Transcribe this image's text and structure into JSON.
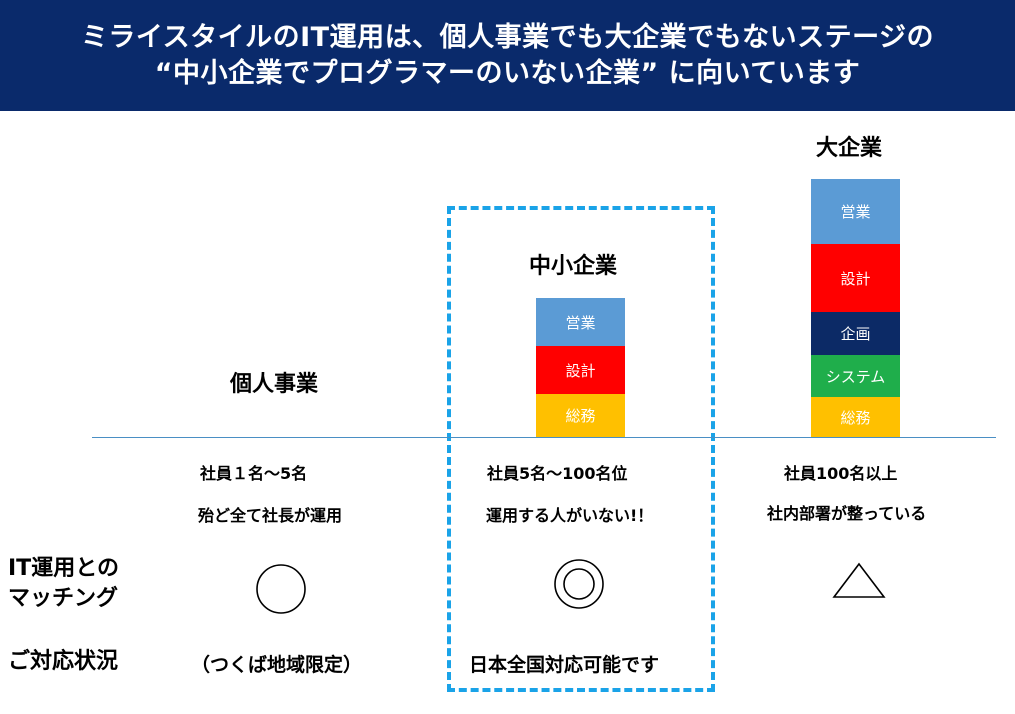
{
  "banner": {
    "line1": "ミライスタイルのIT運用は、個人事業でも大企業でもないステージの",
    "line2": "“中小企業でプログラマーのいない企業” に向いています"
  },
  "colors": {
    "banner_bg": "#0a2a6b",
    "sales": "#5b9bd5",
    "design": "#ff0000",
    "planning": "#0c2a66",
    "system": "#1fae4b",
    "general": "#ffc000",
    "dashed_border": "#1aa3e8"
  },
  "columns": {
    "individual": {
      "title": "個人事業",
      "line1": "社員１名〜5名",
      "line2": "殆ど全て社長が運用",
      "match_symbol": "circle",
      "support": "（つくば地域限定）"
    },
    "sme": {
      "title": "中小企業",
      "blocks": [
        "営業",
        "設計",
        "総務"
      ],
      "line1": "社員5名〜100名位",
      "line2": "運用する人がいない!！",
      "match_symbol": "double-circle",
      "support": "日本全国対応可能です"
    },
    "large": {
      "title": "大企業",
      "blocks": [
        "営業",
        "設計",
        "企画",
        "システム",
        "総務"
      ],
      "line1": "社員100名以上",
      "line2": "社内部署が整っている",
      "match_symbol": "triangle"
    }
  },
  "row_labels": {
    "matching_line1": "IT運用との",
    "matching_line2": "マッチング",
    "support": "ご対応状況"
  }
}
